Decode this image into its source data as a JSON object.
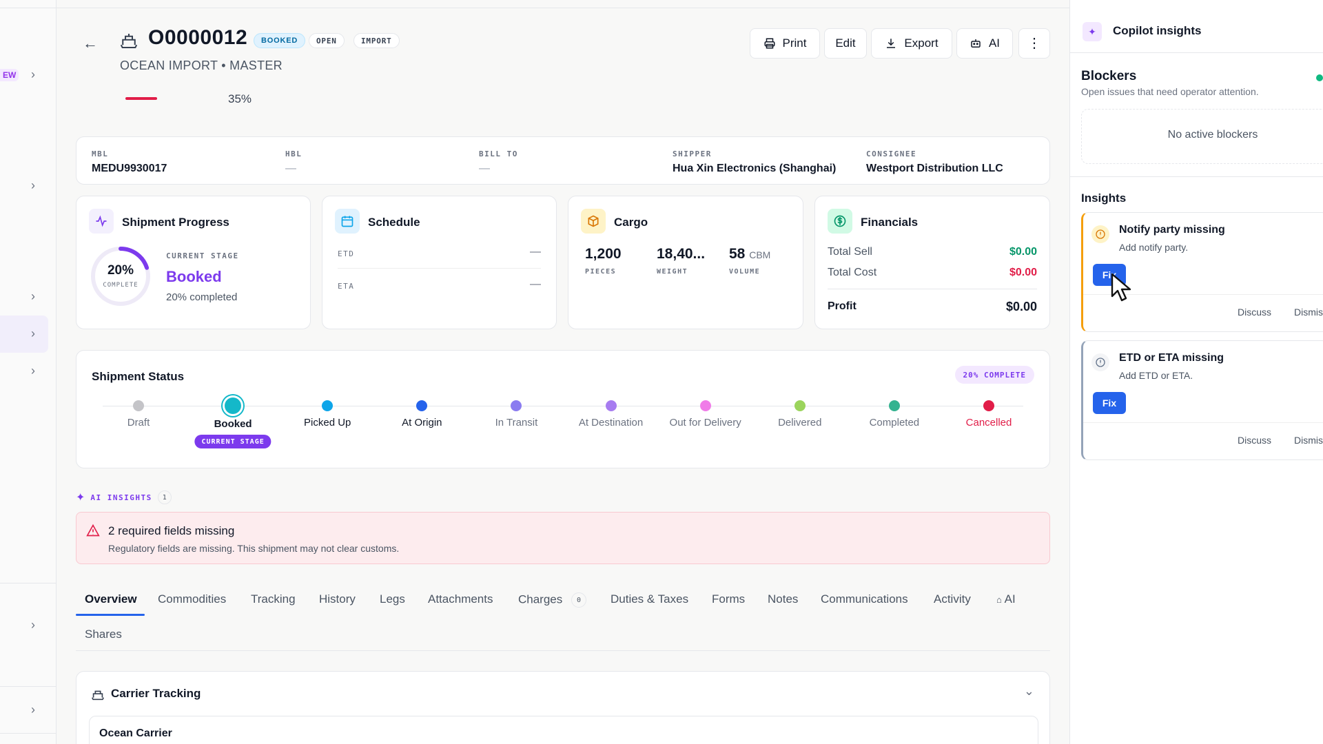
{
  "rail": {
    "new_badge": "EW"
  },
  "header": {
    "reference": "O0000012",
    "badges": [
      "BOOKED",
      "OPEN",
      "IMPORT"
    ],
    "subtitle": "OCEAN IMPORT • MASTER",
    "progress_percent": 35,
    "progress_label": "35%",
    "actions": {
      "print": "Print",
      "edit": "Edit",
      "export": "Export",
      "ai": "AI"
    }
  },
  "info": [
    {
      "label": "MBL",
      "value": "MEDU9930017"
    },
    {
      "label": "HBL",
      "value": "—"
    },
    {
      "label": "BILL TO",
      "value": "—"
    },
    {
      "label": "SHIPPER",
      "value": "Hua Xin Electronics (Shanghai)"
    },
    {
      "label": "CONSIGNEE",
      "value": "Westport Distribution LLC"
    }
  ],
  "progress_card": {
    "title": "Shipment Progress",
    "percent": "20%",
    "complete_label": "COMPLETE",
    "current_stage_label": "CURRENT STAGE",
    "stage": "Booked",
    "completed_text": "20% completed",
    "fraction": 0.2
  },
  "schedule": {
    "title": "Schedule",
    "etd_label": "ETD",
    "etd_value": "—",
    "eta_label": "ETA",
    "eta_value": "—"
  },
  "cargo": {
    "title": "Cargo",
    "pieces_value": "1,200",
    "pieces_label": "PIECES",
    "weight_value": "18,40...",
    "weight_label": "WEIGHT",
    "volume_value": "58",
    "volume_unit": "CBM",
    "volume_label": "VOLUME"
  },
  "financials": {
    "title": "Financials",
    "sell_label": "Total Sell",
    "sell_value": "$0.00",
    "cost_label": "Total Cost",
    "cost_value": "$0.00",
    "profit_label": "Profit",
    "profit_value": "$0.00"
  },
  "status": {
    "title": "Shipment Status",
    "complete_badge": "20% COMPLETE",
    "current_badge": "CURRENT STAGE",
    "stages": [
      {
        "name": "Draft",
        "color": "#c4c4c8"
      },
      {
        "name": "Booked",
        "color": "#14b8c9"
      },
      {
        "name": "Picked Up",
        "color": "#0ea5e9"
      },
      {
        "name": "At Origin",
        "color": "#2563eb"
      },
      {
        "name": "In Transit",
        "color": "#8b7cf0"
      },
      {
        "name": "At Destination",
        "color": "#a77cf0"
      },
      {
        "name": "Out for Delivery",
        "color": "#f07ce8"
      },
      {
        "name": "Delivered",
        "color": "#9bd45c"
      },
      {
        "name": "Completed",
        "color": "#34b390"
      },
      {
        "name": "Cancelled",
        "color": "#e11d48"
      }
    ]
  },
  "ai_insights": {
    "label": "AI INSIGHTS",
    "count": "1",
    "alert_title": "2 required fields missing",
    "alert_text": "Regulatory fields are missing. This shipment may not clear customs."
  },
  "tabs": [
    "Overview",
    "Commodities",
    "Tracking",
    "History",
    "Legs",
    "Attachments",
    "Charges",
    "Duties & Taxes",
    "Forms",
    "Notes",
    "Communications",
    "Activity",
    "AI",
    "Shares"
  ],
  "charges_count": "0",
  "carrier": {
    "title": "Carrier Tracking",
    "sub": "Ocean Carrier"
  },
  "panel": {
    "title": "Copilot insights",
    "blockers_title": "Blockers",
    "blockers_sub": "Open issues that need operator attention.",
    "no_blockers": "No active blockers",
    "insights_title": "Insights",
    "items": [
      {
        "title": "Notify party missing",
        "sub": "Add notify party.",
        "fix": "Fix",
        "discuss": "Discuss",
        "dismiss": "Dismiss"
      },
      {
        "title": "ETD or ETA missing",
        "sub": "Add ETD or ETA.",
        "fix": "Fix",
        "discuss": "Discuss",
        "dismiss": "Dismiss"
      }
    ]
  },
  "colors": {
    "accent": "#7c3aed",
    "primary": "#2563eb",
    "danger": "#e11d48",
    "success": "#059669",
    "warning": "#f59e0b"
  }
}
